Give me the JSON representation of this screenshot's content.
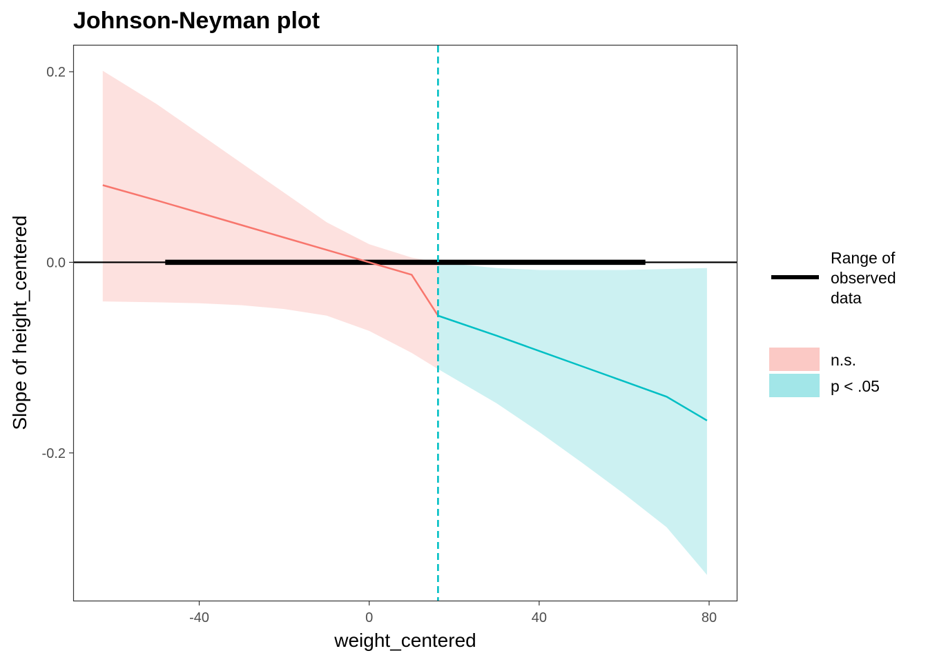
{
  "chart_data": {
    "type": "line",
    "title": "Johnson-Neyman plot",
    "xlabel": "weight_centered",
    "ylabel": "Slope of height_centered",
    "xlim": [
      -69.5,
      86.5
    ],
    "ylim": [
      -0.355,
      0.2275
    ],
    "x_ticks": [
      -40,
      0,
      40,
      80
    ],
    "x_tick_labels": [
      "-40",
      "0",
      "40",
      "80"
    ],
    "y_ticks": [
      -0.2,
      0.0,
      0.2
    ],
    "y_tick_labels": [
      "-0.2",
      "0.0",
      "0.2"
    ],
    "grid": false,
    "legend_position": "right",
    "zero_line": 0.0,
    "jn_threshold": 16.2,
    "observed_range": {
      "label": "Range of\nobserved\ndata",
      "from": -48,
      "to": 65
    },
    "series": [
      {
        "name": "n.s.",
        "color": "#F8766D",
        "fill": "#FBC9C5",
        "x": [
          -62.7,
          -50,
          -40,
          -30,
          -20,
          -10,
          0,
          10,
          16.2
        ],
        "y": [
          0.081,
          0.065,
          0.052,
          0.039,
          0.026,
          0.013,
          0.0,
          -0.013,
          -0.056
        ],
        "lower": [
          -0.041,
          -0.042,
          -0.043,
          -0.045,
          -0.049,
          -0.056,
          -0.072,
          -0.095,
          -0.112
        ],
        "upper": [
          0.201,
          0.166,
          0.135,
          0.104,
          0.073,
          0.042,
          0.019,
          0.005,
          0.0
        ]
      },
      {
        "name": "p < .05",
        "color": "#00BFC4",
        "fill": "#A2E6E8",
        "x": [
          16.2,
          30,
          40,
          50,
          60,
          70,
          79.5
        ],
        "y": [
          -0.056,
          -0.077,
          -0.093,
          -0.109,
          -0.125,
          -0.141,
          -0.166
        ],
        "lower": [
          -0.112,
          -0.148,
          -0.178,
          -0.21,
          -0.243,
          -0.278,
          -0.328
        ],
        "upper": [
          0.0,
          -0.006,
          -0.008,
          -0.008,
          -0.008,
          -0.007,
          -0.006
        ]
      }
    ]
  }
}
